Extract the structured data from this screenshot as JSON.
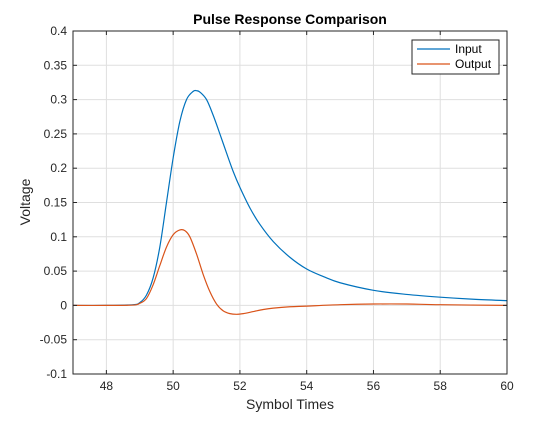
{
  "chart_data": {
    "type": "line",
    "title": "Pulse Response Comparison",
    "xlabel": "Symbol Times",
    "ylabel": "Voltage",
    "xlim": [
      47,
      60
    ],
    "ylim": [
      -0.1,
      0.4
    ],
    "xticks": [
      48,
      50,
      52,
      54,
      56,
      58,
      60
    ],
    "yticks": [
      -0.1,
      -0.05,
      0,
      0.05,
      0.1,
      0.15,
      0.2,
      0.25,
      0.3,
      0.35,
      0.4
    ],
    "xtick_labels": [
      "48",
      "50",
      "52",
      "54",
      "56",
      "58",
      "60"
    ],
    "ytick_labels": [
      "-0.1",
      "-0.05",
      "0",
      "0.05",
      "0.1",
      "0.15",
      "0.2",
      "0.25",
      "0.3",
      "0.35",
      "0.4"
    ],
    "grid": true,
    "legend_position": "top-right",
    "series": [
      {
        "name": "Input",
        "color": "#0072BD",
        "x": [
          47,
          48,
          48.8,
          49.0,
          49.2,
          49.4,
          49.6,
          49.8,
          50.0,
          50.2,
          50.4,
          50.6,
          50.7,
          50.8,
          51.0,
          51.2,
          51.4,
          51.6,
          51.8,
          52.0,
          52.3,
          52.6,
          53.0,
          53.5,
          54.0,
          54.5,
          55.0,
          56.0,
          57.0,
          58.0,
          59.0,
          60.0
        ],
        "values": [
          0,
          0,
          0.001,
          0.004,
          0.015,
          0.04,
          0.085,
          0.15,
          0.215,
          0.268,
          0.3,
          0.312,
          0.313,
          0.311,
          0.3,
          0.277,
          0.25,
          0.222,
          0.195,
          0.172,
          0.142,
          0.118,
          0.093,
          0.07,
          0.053,
          0.042,
          0.033,
          0.022,
          0.016,
          0.012,
          0.009,
          0.007
        ]
      },
      {
        "name": "Output",
        "color": "#D95319",
        "x": [
          47,
          48,
          48.8,
          49.0,
          49.2,
          49.4,
          49.6,
          49.8,
          50.0,
          50.2,
          50.35,
          50.5,
          50.7,
          50.9,
          51.1,
          51.3,
          51.5,
          51.7,
          51.9,
          52.1,
          52.4,
          52.7,
          53.0,
          53.5,
          54.0,
          55.0,
          56.0,
          57.0,
          58.0,
          60.0
        ],
        "values": [
          0,
          0,
          0.0005,
          0.003,
          0.01,
          0.03,
          0.058,
          0.085,
          0.103,
          0.11,
          0.109,
          0.1,
          0.075,
          0.045,
          0.02,
          0.002,
          -0.008,
          -0.012,
          -0.013,
          -0.012,
          -0.009,
          -0.006,
          -0.004,
          -0.002,
          -0.001,
          0.001,
          0.002,
          0.002,
          0.001,
          0.0
        ]
      }
    ]
  }
}
